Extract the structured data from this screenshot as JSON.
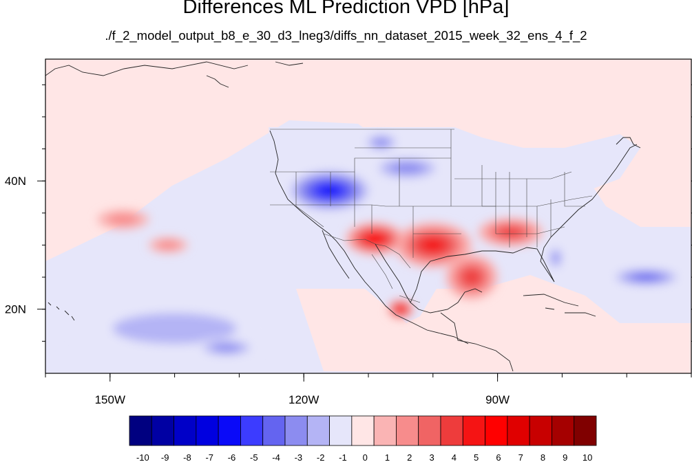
{
  "title": "Differences ML Prediction VPD [hPa]",
  "subtitle": "./f_2_model_output_b8_e_30_d3_lneg3/diffs_nn_dataset_2015_week_32_ens_4_f_2",
  "map": {
    "region": "North America and adjacent Pacific / Atlantic",
    "lon_range": [
      -160,
      -60
    ],
    "lat_range": [
      10,
      59
    ],
    "x_ticks": [
      {
        "value": -150,
        "label": "150W"
      },
      {
        "value": -120,
        "label": "120W"
      },
      {
        "value": -90,
        "label": "90W"
      }
    ],
    "y_ticks": [
      {
        "value": 40,
        "label": "40N"
      },
      {
        "value": 20,
        "label": "20N"
      }
    ],
    "features": [
      {
        "name": "dry anomaly over California and Nevada",
        "lon": -116,
        "lat": 38.5,
        "value": -6,
        "rx": 7,
        "ry": 3.5
      },
      {
        "name": "dry anomaly over Wyoming and South Dakota",
        "lon": -104,
        "lat": 42,
        "value": -3,
        "rx": 6,
        "ry": 2
      },
      {
        "name": "dry anomaly over Montana",
        "lon": -108,
        "lat": 46,
        "value": -3,
        "rx": 3,
        "ry": 1.5
      },
      {
        "name": "wet anomaly over Texas",
        "lon": -100,
        "lat": 30,
        "value": 5,
        "rx": 6,
        "ry": 3.5
      },
      {
        "name": "wet anomaly over northern Mexico",
        "lon": -109,
        "lat": 31,
        "value": 6,
        "rx": 4.5,
        "ry": 2.5
      },
      {
        "name": "wet anomaly over southeastern US",
        "lon": -88,
        "lat": 32,
        "value": 4,
        "rx": 5,
        "ry": 2.2
      },
      {
        "name": "wet anomaly over Gulf of Mexico",
        "lon": -94,
        "lat": 25,
        "value": 4,
        "rx": 4,
        "ry": 3.5
      },
      {
        "name": "wet anomaly over southern Mexico",
        "lon": -105,
        "lat": 20,
        "value": 6,
        "rx": 2,
        "ry": 1.5
      },
      {
        "name": "dry anomaly over Florida",
        "lon": -81,
        "lat": 28,
        "value": -3,
        "rx": 1.2,
        "ry": 2
      },
      {
        "name": "dry anomaly over western Atlantic",
        "lon": -67,
        "lat": 25,
        "value": -4,
        "rx": 6,
        "ry": 1.5
      },
      {
        "name": "dry band over subtropical Pacific",
        "lon": -140,
        "lat": 17,
        "value": -2,
        "rx": 16,
        "ry": 4
      },
      {
        "name": "dry anomaly off Baja California",
        "lon": -132,
        "lat": 14,
        "value": -3,
        "rx": 5,
        "ry": 1.5
      },
      {
        "name": "wet anomaly over eastern Pacific",
        "lon": -148,
        "lat": 34,
        "value": 2,
        "rx": 4,
        "ry": 1.5
      },
      {
        "name": "wet anomaly over eastern Pacific",
        "lon": -141,
        "lat": 30,
        "value": 2,
        "rx": 3,
        "ry": 1.2
      }
    ]
  },
  "colorbar": {
    "levels": [
      "-10",
      "-9",
      "-8",
      "-7",
      "-6",
      "-5",
      "-4",
      "-3",
      "-2",
      "-1",
      "0",
      "1",
      "2",
      "3",
      "4",
      "5",
      "6",
      "7",
      "8",
      "9",
      "10"
    ],
    "colors": [
      "#000080",
      "#0000a3",
      "#0000c8",
      "#0000e0",
      "#0a0af8",
      "#3c3cff",
      "#6464f0",
      "#8c8cf0",
      "#b4b4f5",
      "#e6e6fa",
      "#ffe6e6",
      "#fab4b4",
      "#f78c8c",
      "#f06464",
      "#ee3c3c",
      "#f51414",
      "#ff0000",
      "#e00000",
      "#c80000",
      "#a50000",
      "#800000"
    ]
  }
}
